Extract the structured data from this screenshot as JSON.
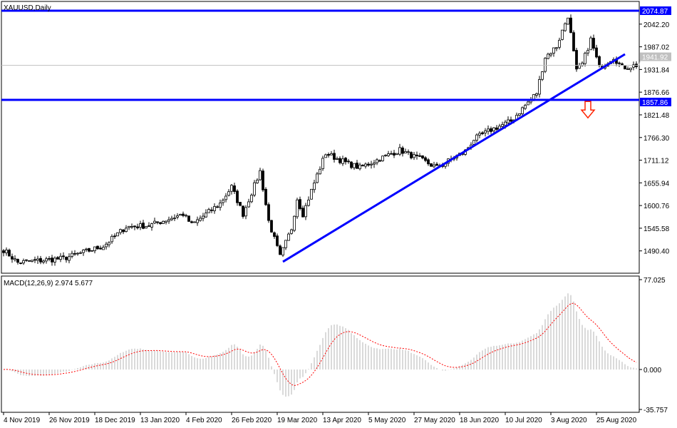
{
  "window": {
    "symbol_title": "XAUUSD,Daily"
  },
  "colors": {
    "line_blue": "#0000ff",
    "arrow_red": "#ff2200",
    "signal_red": "#ff0000",
    "histogram": "#c0c0c0",
    "current_price_gray": "#c0c0c0"
  },
  "price_axis": {
    "ticks": [
      "2042.20",
      "1987.02",
      "1931.84",
      "1876.66",
      "1821.48",
      "1766.30",
      "1711.12",
      "1655.94",
      "1600.76",
      "1545.58",
      "1490.40"
    ],
    "range": [
      1460,
      2100
    ],
    "level_labels": [
      {
        "value": 2074.87,
        "label": "2074.87"
      },
      {
        "value": 1857.86,
        "label": "1857.86"
      }
    ],
    "current_label": {
      "value": 1941.92,
      "label": "1941.92"
    }
  },
  "macd": {
    "title": "MACD(12,26,9) 2.974 5.677",
    "ticks": [
      {
        "value": 77.025,
        "label": "77.025"
      },
      {
        "value": 0,
        "label": "0.000"
      },
      {
        "value": -35.757,
        "label": "-35.757"
      }
    ]
  },
  "time_axis": {
    "labels": [
      "4 Nov 2019",
      "26 Nov 2019",
      "18 Dec 2019",
      "13 Jan 2020",
      "4 Feb 2020",
      "26 Feb 2020",
      "19 Mar 2020",
      "13 Apr 2020",
      "5 May 2020",
      "27 May 2020",
      "18 Jun 2020",
      "10 Jul 2020",
      "3 Aug 2020",
      "25 Aug 2020"
    ]
  },
  "chart_data": {
    "type": "candlestick",
    "title": "XAUUSD,Daily",
    "start_date": "2019-11-04",
    "end_date": "2020-09-09",
    "close_path": [
      [
        "2019-11-04",
        1493
      ],
      [
        "2019-11-11",
        1462
      ],
      [
        "2019-12-03",
        1472
      ],
      [
        "2019-12-23",
        1502
      ],
      [
        "2020-01-02",
        1549
      ],
      [
        "2020-01-14",
        1552
      ],
      [
        "2020-01-30",
        1580
      ],
      [
        "2020-02-04",
        1554
      ],
      [
        "2020-02-18",
        1606
      ],
      [
        "2020-02-24",
        1646
      ],
      [
        "2020-02-28",
        1580
      ],
      [
        "2020-03-09",
        1684
      ],
      [
        "2020-03-12",
        1563
      ],
      [
        "2020-03-18",
        1476
      ],
      [
        "2020-03-24",
        1545
      ],
      [
        "2020-03-26",
        1618
      ],
      [
        "2020-03-30",
        1580
      ],
      [
        "2020-04-06",
        1675
      ],
      [
        "2020-04-09",
        1728
      ],
      [
        "2020-04-21",
        1702
      ],
      [
        "2020-04-27",
        1693
      ],
      [
        "2020-05-15",
        1736
      ],
      [
        "2020-05-27",
        1710
      ],
      [
        "2020-06-03",
        1693
      ],
      [
        "2020-06-17",
        1733
      ],
      [
        "2020-06-22",
        1762
      ],
      [
        "2020-06-30",
        1785
      ],
      [
        "2020-07-09",
        1806
      ],
      [
        "2020-07-22",
        1875
      ],
      [
        "2020-07-27",
        1962
      ],
      [
        "2020-07-31",
        1988
      ],
      [
        "2020-08-06",
        2063
      ],
      [
        "2020-08-11",
        1927
      ],
      [
        "2020-08-13",
        1945
      ],
      [
        "2020-08-18",
        2005
      ],
      [
        "2020-08-21",
        1936
      ],
      [
        "2020-08-28",
        1962
      ],
      [
        "2020-09-02",
        1936
      ],
      [
        "2020-09-09",
        1942
      ]
    ],
    "horizontal_levels": [
      2074.87,
      1857.86
    ],
    "trendline": {
      "from": [
        "2020-03-19",
        1464
      ],
      "to": [
        "2020-09-03",
        1969
      ]
    },
    "annotation": {
      "type": "down-arrow",
      "date": "2020-08-17",
      "price": 1835
    },
    "indicator": {
      "name": "MACD",
      "params": [
        12,
        26,
        9
      ],
      "main": 2.974,
      "signal": 5.677
    }
  }
}
